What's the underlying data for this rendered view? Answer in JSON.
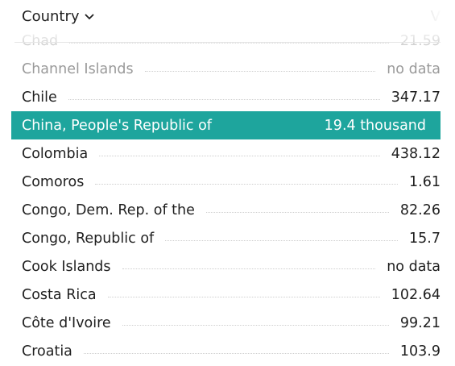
{
  "header": {
    "sort_label": "Country",
    "value_label": "V"
  },
  "rows": [
    {
      "name": "Chad",
      "value": "21.59",
      "state": "partial"
    },
    {
      "name": "Channel Islands",
      "value": "no data",
      "state": "dim"
    },
    {
      "name": "Chile",
      "value": "347.17",
      "state": "normal"
    },
    {
      "name": "China, People's Republic of",
      "value": "19.4 thousand",
      "state": "selected"
    },
    {
      "name": "Colombia",
      "value": "438.12",
      "state": "normal"
    },
    {
      "name": "Comoros",
      "value": "1.61",
      "state": "normal"
    },
    {
      "name": "Congo, Dem. Rep. of the",
      "value": "82.26",
      "state": "normal"
    },
    {
      "name": "Congo, Republic of",
      "value": "15.7",
      "state": "normal"
    },
    {
      "name": "Cook Islands",
      "value": "no data",
      "state": "normal"
    },
    {
      "name": "Costa Rica",
      "value": "102.64",
      "state": "normal"
    },
    {
      "name": "Côte d'Ivoire",
      "value": "99.21",
      "state": "normal"
    },
    {
      "name": "Croatia",
      "value": "103.9",
      "state": "normal"
    }
  ],
  "colors": {
    "selected_bg": "#1ea59d",
    "text": "#1f1f1f",
    "dim_text": "#9a9a9a"
  }
}
